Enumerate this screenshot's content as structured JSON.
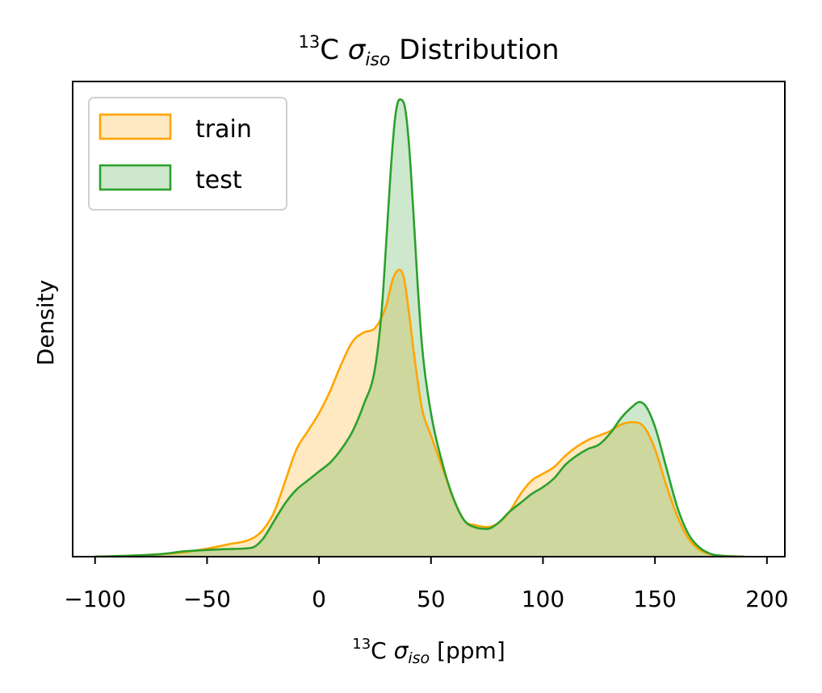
{
  "chart_data": {
    "type": "area",
    "title_pre": "13",
    "title_main": "C ",
    "title_sym": "σ",
    "title_sub": "iso",
    "title_post": " Distribution",
    "xlabel_pre": "13",
    "xlabel_main": "C ",
    "xlabel_sym": "σ",
    "xlabel_sub": "iso",
    "xlabel_post": " [ppm]",
    "ylabel": "Density",
    "xlim": [
      -110,
      208
    ],
    "ylim": [
      0,
      1.06
    ],
    "xticks": [
      -100,
      -50,
      0,
      50,
      100,
      150,
      200
    ],
    "xtick_labels": [
      "−100",
      "−50",
      "0",
      "50",
      "100",
      "150",
      "200"
    ],
    "grid": false,
    "legend_position": "top-left",
    "series": [
      {
        "name": "train",
        "color": "#FFA500",
        "x": [
          -100,
          -80,
          -60,
          -50,
          -40,
          -30,
          -25,
          -20,
          -15,
          -10,
          -5,
          0,
          5,
          10,
          15,
          20,
          25,
          30,
          33,
          36,
          38,
          40,
          43,
          46,
          50,
          55,
          60,
          65,
          70,
          75,
          80,
          85,
          90,
          95,
          100,
          105,
          110,
          115,
          120,
          125,
          130,
          135,
          140,
          145,
          150,
          155,
          160,
          165,
          170,
          175,
          180,
          190
        ],
        "y": [
          0.0,
          0.003,
          0.01,
          0.018,
          0.028,
          0.04,
          0.06,
          0.1,
          0.17,
          0.24,
          0.28,
          0.32,
          0.37,
          0.43,
          0.48,
          0.5,
          0.51,
          0.56,
          0.62,
          0.64,
          0.62,
          0.55,
          0.43,
          0.33,
          0.27,
          0.2,
          0.13,
          0.08,
          0.07,
          0.066,
          0.075,
          0.1,
          0.14,
          0.17,
          0.185,
          0.2,
          0.225,
          0.245,
          0.26,
          0.27,
          0.28,
          0.295,
          0.3,
          0.29,
          0.24,
          0.16,
          0.09,
          0.04,
          0.015,
          0.005,
          0.002,
          0.0
        ]
      },
      {
        "name": "test",
        "color": "#2CA02C",
        "x": [
          -100,
          -80,
          -70,
          -60,
          -50,
          -40,
          -30,
          -25,
          -20,
          -15,
          -10,
          -5,
          0,
          5,
          10,
          15,
          20,
          25,
          28,
          30,
          32,
          34,
          36,
          38,
          40,
          42,
          44,
          46,
          50,
          55,
          60,
          65,
          70,
          75,
          80,
          85,
          90,
          95,
          100,
          105,
          110,
          115,
          120,
          125,
          130,
          135,
          140,
          143,
          146,
          150,
          155,
          160,
          165,
          170,
          175,
          180,
          190
        ],
        "y": [
          0.0,
          0.003,
          0.006,
          0.012,
          0.015,
          0.017,
          0.02,
          0.04,
          0.08,
          0.12,
          0.15,
          0.17,
          0.19,
          0.21,
          0.24,
          0.28,
          0.34,
          0.42,
          0.55,
          0.7,
          0.86,
          0.98,
          1.02,
          1.01,
          0.93,
          0.78,
          0.61,
          0.47,
          0.32,
          0.21,
          0.13,
          0.08,
          0.065,
          0.062,
          0.075,
          0.1,
          0.12,
          0.14,
          0.155,
          0.175,
          0.205,
          0.225,
          0.24,
          0.25,
          0.275,
          0.31,
          0.335,
          0.345,
          0.335,
          0.29,
          0.2,
          0.11,
          0.05,
          0.02,
          0.006,
          0.002,
          0.0
        ]
      }
    ]
  }
}
